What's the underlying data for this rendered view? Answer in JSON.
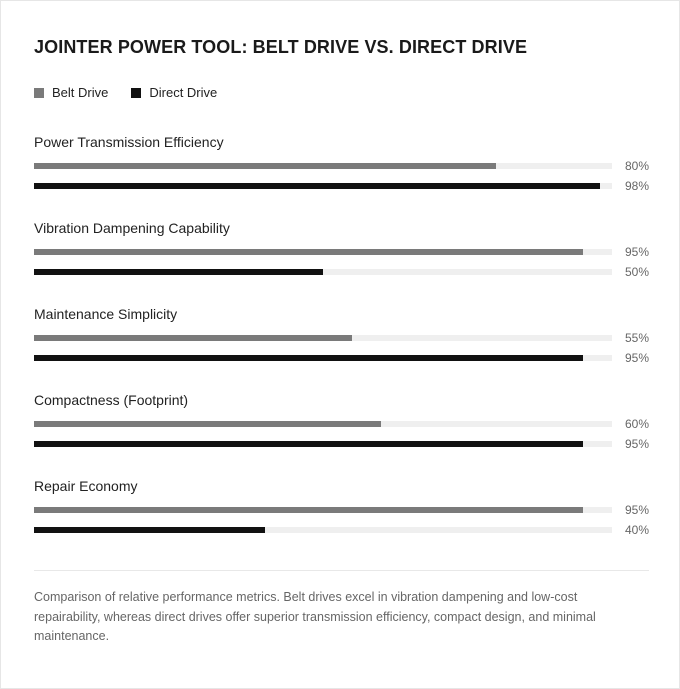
{
  "chart_data": {
    "type": "bar",
    "orientation": "horizontal",
    "title": "JOINTER POWER TOOL: BELT DRIVE VS. DIRECT DRIVE",
    "categories": [
      "Power Transmission Efficiency",
      "Vibration Dampening Capability",
      "Maintenance Simplicity",
      "Compactness (Footprint)",
      "Repair Economy"
    ],
    "series": [
      {
        "name": "Belt Drive",
        "color": "#7a7a7a",
        "values": [
          80,
          95,
          55,
          60,
          95
        ]
      },
      {
        "name": "Direct Drive",
        "color": "#111111",
        "values": [
          98,
          50,
          95,
          95,
          40
        ]
      }
    ],
    "value_labels": [
      [
        "80%",
        "95%",
        "55%",
        "60%",
        "95%"
      ],
      [
        "98%",
        "50%",
        "95%",
        "95%",
        "40%"
      ]
    ],
    "xlim": [
      0,
      100
    ],
    "unit": "%",
    "legend_position": "top-left",
    "grid": false,
    "track_color": "#efefef"
  },
  "caption": "Comparison of relative performance metrics. Belt drives excel in vibration dampening and low-cost repairability, whereas direct drives offer superior transmission efficiency, compact design, and minimal maintenance."
}
